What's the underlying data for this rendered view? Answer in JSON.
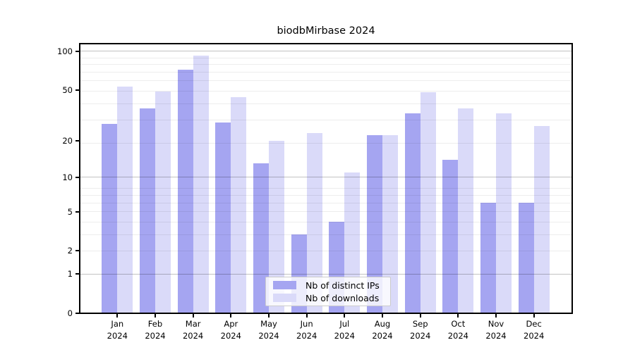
{
  "title": "biodbMirbase 2024",
  "chart_data": {
    "type": "bar",
    "title": "biodbMirbase 2024",
    "categories": [
      "Jan 2024",
      "Feb 2024",
      "Mar 2024",
      "Apr 2024",
      "May 2024",
      "Jun 2024",
      "Jul 2024",
      "Aug 2024",
      "Sep 2024",
      "Oct 2024",
      "Nov 2024",
      "Dec 2024"
    ],
    "x_tick_months": [
      "Jan",
      "Feb",
      "Mar",
      "Apr",
      "May",
      "Jun",
      "Jul",
      "Aug",
      "Sep",
      "Oct",
      "Nov",
      "Dec"
    ],
    "x_tick_year": "2024",
    "series": [
      {
        "name": "Nb of distinct IPs",
        "color": "#a5a5f1",
        "key": "distinct-ips",
        "values": [
          27,
          36,
          72,
          28,
          13,
          3,
          4,
          22,
          33,
          14,
          6,
          6
        ]
      },
      {
        "name": "Nb of downloads",
        "color": "#dadaf9",
        "key": "downloads",
        "values": [
          53,
          49,
          93,
          44,
          20,
          23,
          11,
          22,
          48,
          36,
          33,
          26
        ]
      }
    ],
    "y_scale": "log10(1+x)",
    "y_ticks": [
      100,
      50,
      20,
      10,
      5,
      2,
      1,
      0
    ],
    "y_tick_labels": [
      "100",
      "50",
      "20",
      "10",
      "5",
      "2",
      "1",
      "0"
    ],
    "y_grid_major": [
      100,
      10,
      1
    ],
    "y_grid_minor": [
      2,
      3,
      4,
      5,
      6,
      7,
      8,
      19,
      29,
      39,
      49,
      59,
      69,
      79,
      89
    ],
    "ylim": [
      0,
      114
    ],
    "grid": true,
    "legend_position": "lower-center",
    "colors": {
      "bar_dark": "#a5a5f1",
      "bar_light": "#dadaf9",
      "grid_minor": "#ececec",
      "grid_major": "#c2c2c2",
      "axis": "#000000",
      "legend_border": "#cccccc",
      "background": "#ffffff"
    }
  }
}
